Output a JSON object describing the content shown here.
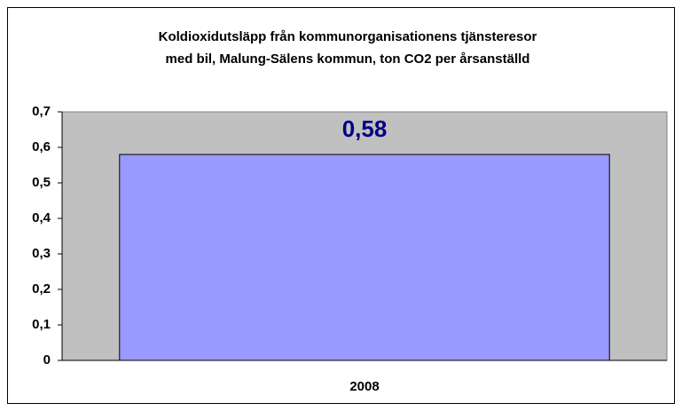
{
  "chart_data": {
    "type": "bar",
    "title": [
      "Koldioxidutsläpp från kommunorganisationens tjänsteresor",
      "med bil, Malung-Sälens kommun, ton CO2 per årsanställd"
    ],
    "categories": [
      "2008"
    ],
    "values": [
      0.58
    ],
    "value_labels": [
      "0,58"
    ],
    "color": "#9999ff",
    "ylim": [
      0,
      0.7
    ],
    "yticks": [
      0,
      {
        "value": 0.1,
        "label": "0,1"
      },
      {
        "value": 0.2,
        "label": "0,2"
      },
      {
        "value": 0.3,
        "label": "0,3"
      },
      {
        "value": 0.4,
        "label": "0,4"
      },
      {
        "value": 0.5,
        "label": "0,5"
      },
      {
        "value": 0.6,
        "label": "0,6"
      },
      {
        "value": 0.7,
        "label": "0,7"
      }
    ],
    "grid": false
  }
}
